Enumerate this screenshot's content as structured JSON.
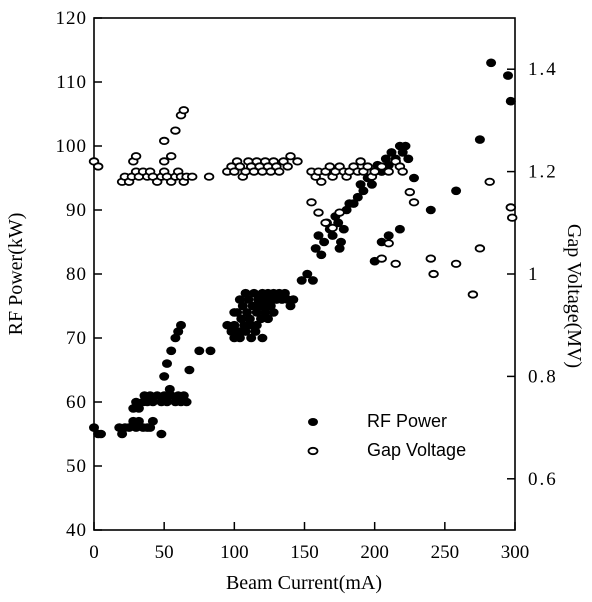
{
  "chart_data": {
    "type": "scatter",
    "xlabel": "Beam Current(mA)",
    "ylabel_left": "RF Power(kW)",
    "ylabel_right": "Gap Voltage(MV)",
    "xlim": [
      0,
      300
    ],
    "ylim_left": [
      40,
      120
    ],
    "ylim_right": [
      0.5,
      1.5
    ],
    "x_ticks": [
      0,
      50,
      100,
      150,
      200,
      250,
      300
    ],
    "y_left_ticks": [
      40,
      50,
      60,
      70,
      80,
      90,
      100,
      110,
      120
    ],
    "y_right_ticks": [
      "0.6",
      "0.8",
      "1",
      "1.2",
      "1.4"
    ],
    "y_right_tick_values": [
      0.6,
      0.8,
      1.0,
      1.2,
      1.4
    ],
    "grid": false,
    "legend_position": "lower-right",
    "series": [
      {
        "name": "RF Power",
        "axis": "left",
        "marker": "filled-circle",
        "color": "#000000",
        "points": [
          [
            0,
            56
          ],
          [
            3,
            55
          ],
          [
            5,
            55
          ],
          [
            18,
            56
          ],
          [
            20,
            55
          ],
          [
            22,
            56
          ],
          [
            25,
            56
          ],
          [
            28,
            57
          ],
          [
            30,
            56
          ],
          [
            32,
            57
          ],
          [
            35,
            56
          ],
          [
            38,
            56
          ],
          [
            40,
            56
          ],
          [
            42,
            57
          ],
          [
            28,
            59
          ],
          [
            30,
            60
          ],
          [
            32,
            59
          ],
          [
            35,
            60
          ],
          [
            36,
            61
          ],
          [
            38,
            60
          ],
          [
            40,
            61
          ],
          [
            42,
            60
          ],
          [
            45,
            61
          ],
          [
            48,
            60
          ],
          [
            50,
            61
          ],
          [
            52,
            60
          ],
          [
            55,
            61
          ],
          [
            58,
            60
          ],
          [
            60,
            61
          ],
          [
            62,
            60
          ],
          [
            64,
            61
          ],
          [
            66,
            60
          ],
          [
            48,
            55
          ],
          [
            50,
            64
          ],
          [
            52,
            66
          ],
          [
            55,
            68
          ],
          [
            58,
            70
          ],
          [
            60,
            71
          ],
          [
            62,
            72
          ],
          [
            54,
            62
          ],
          [
            68,
            65
          ],
          [
            75,
            68
          ],
          [
            83,
            68
          ],
          [
            95,
            72
          ],
          [
            98,
            71
          ],
          [
            100,
            70
          ],
          [
            100,
            72
          ],
          [
            102,
            74
          ],
          [
            103,
            71
          ],
          [
            104,
            70
          ],
          [
            105,
            73
          ],
          [
            106,
            75
          ],
          [
            107,
            72
          ],
          [
            108,
            71
          ],
          [
            109,
            74
          ],
          [
            110,
            76
          ],
          [
            111,
            73
          ],
          [
            112,
            72
          ],
          [
            113,
            75
          ],
          [
            114,
            77
          ],
          [
            115,
            71
          ],
          [
            116,
            74
          ],
          [
            117,
            76
          ],
          [
            118,
            75
          ],
          [
            119,
            73
          ],
          [
            120,
            77
          ],
          [
            121,
            76
          ],
          [
            122,
            74
          ],
          [
            123,
            75
          ],
          [
            124,
            77
          ],
          [
            125,
            76
          ],
          [
            126,
            75
          ],
          [
            128,
            77
          ],
          [
            130,
            76
          ],
          [
            132,
            77
          ],
          [
            134,
            76
          ],
          [
            136,
            77
          ],
          [
            138,
            76
          ],
          [
            140,
            75
          ],
          [
            142,
            76
          ],
          [
            100,
            74
          ],
          [
            104,
            76
          ],
          [
            108,
            77
          ],
          [
            112,
            70
          ],
          [
            116,
            72
          ],
          [
            120,
            70
          ],
          [
            124,
            73
          ],
          [
            128,
            74
          ],
          [
            148,
            79
          ],
          [
            152,
            80
          ],
          [
            156,
            79
          ],
          [
            158,
            84
          ],
          [
            160,
            86
          ],
          [
            162,
            83
          ],
          [
            164,
            85
          ],
          [
            166,
            88
          ],
          [
            168,
            87
          ],
          [
            170,
            86
          ],
          [
            172,
            89
          ],
          [
            174,
            88
          ],
          [
            176,
            85
          ],
          [
            178,
            87
          ],
          [
            180,
            90
          ],
          [
            175,
            84
          ],
          [
            182,
            91
          ],
          [
            185,
            91
          ],
          [
            188,
            92
          ],
          [
            190,
            94
          ],
          [
            192,
            93
          ],
          [
            195,
            95
          ],
          [
            198,
            94
          ],
          [
            200,
            96
          ],
          [
            202,
            97
          ],
          [
            205,
            96
          ],
          [
            208,
            98
          ],
          [
            210,
            97
          ],
          [
            212,
            99
          ],
          [
            215,
            98
          ],
          [
            218,
            100
          ],
          [
            220,
            99
          ],
          [
            222,
            100
          ],
          [
            224,
            98
          ],
          [
            200,
            82
          ],
          [
            205,
            85
          ],
          [
            210,
            86
          ],
          [
            218,
            87
          ],
          [
            228,
            95
          ],
          [
            240,
            90
          ],
          [
            258,
            93
          ],
          [
            275,
            101
          ],
          [
            283,
            113
          ],
          [
            295,
            111
          ],
          [
            297,
            107
          ]
        ]
      },
      {
        "name": "Gap Voltage",
        "axis": "right",
        "marker": "open-circle",
        "color": "#000000",
        "points": [
          [
            0,
            1.22
          ],
          [
            3,
            1.21
          ],
          [
            20,
            1.18
          ],
          [
            22,
            1.19
          ],
          [
            25,
            1.18
          ],
          [
            27,
            1.19
          ],
          [
            30,
            1.2
          ],
          [
            32,
            1.19
          ],
          [
            35,
            1.2
          ],
          [
            38,
            1.19
          ],
          [
            40,
            1.2
          ],
          [
            42,
            1.19
          ],
          [
            45,
            1.18
          ],
          [
            48,
            1.19
          ],
          [
            50,
            1.2
          ],
          [
            52,
            1.19
          ],
          [
            55,
            1.18
          ],
          [
            58,
            1.19
          ],
          [
            60,
            1.2
          ],
          [
            62,
            1.19
          ],
          [
            64,
            1.18
          ],
          [
            66,
            1.19
          ],
          [
            28,
            1.22
          ],
          [
            30,
            1.23
          ],
          [
            50,
            1.22
          ],
          [
            55,
            1.23
          ],
          [
            50,
            1.26
          ],
          [
            58,
            1.28
          ],
          [
            62,
            1.31
          ],
          [
            64,
            1.32
          ],
          [
            70,
            1.19
          ],
          [
            82,
            1.19
          ],
          [
            95,
            1.2
          ],
          [
            98,
            1.21
          ],
          [
            100,
            1.2
          ],
          [
            102,
            1.22
          ],
          [
            104,
            1.21
          ],
          [
            106,
            1.19
          ],
          [
            108,
            1.2
          ],
          [
            110,
            1.22
          ],
          [
            112,
            1.21
          ],
          [
            114,
            1.2
          ],
          [
            116,
            1.22
          ],
          [
            118,
            1.21
          ],
          [
            120,
            1.2
          ],
          [
            122,
            1.22
          ],
          [
            124,
            1.21
          ],
          [
            126,
            1.2
          ],
          [
            128,
            1.22
          ],
          [
            130,
            1.21
          ],
          [
            132,
            1.2
          ],
          [
            135,
            1.22
          ],
          [
            138,
            1.21
          ],
          [
            140,
            1.23
          ],
          [
            145,
            1.22
          ],
          [
            155,
            1.2
          ],
          [
            158,
            1.19
          ],
          [
            160,
            1.2
          ],
          [
            162,
            1.18
          ],
          [
            165,
            1.2
          ],
          [
            168,
            1.21
          ],
          [
            170,
            1.19
          ],
          [
            172,
            1.2
          ],
          [
            175,
            1.21
          ],
          [
            178,
            1.2
          ],
          [
            180,
            1.19
          ],
          [
            182,
            1.2
          ],
          [
            185,
            1.21
          ],
          [
            188,
            1.2
          ],
          [
            190,
            1.22
          ],
          [
            192,
            1.2
          ],
          [
            195,
            1.21
          ],
          [
            198,
            1.19
          ],
          [
            200,
            1.2
          ],
          [
            205,
            1.21
          ],
          [
            210,
            1.2
          ],
          [
            215,
            1.22
          ],
          [
            218,
            1.21
          ],
          [
            220,
            1.2
          ],
          [
            155,
            1.14
          ],
          [
            160,
            1.12
          ],
          [
            165,
            1.1
          ],
          [
            170,
            1.09
          ],
          [
            175,
            1.12
          ],
          [
            205,
            1.03
          ],
          [
            210,
            1.06
          ],
          [
            215,
            1.02
          ],
          [
            225,
            1.16
          ],
          [
            228,
            1.14
          ],
          [
            240,
            1.03
          ],
          [
            242,
            1.0
          ],
          [
            258,
            1.02
          ],
          [
            270,
            0.96
          ],
          [
            275,
            1.05
          ],
          [
            282,
            1.18
          ],
          [
            297,
            1.13
          ],
          [
            298,
            1.11
          ]
        ]
      }
    ]
  }
}
